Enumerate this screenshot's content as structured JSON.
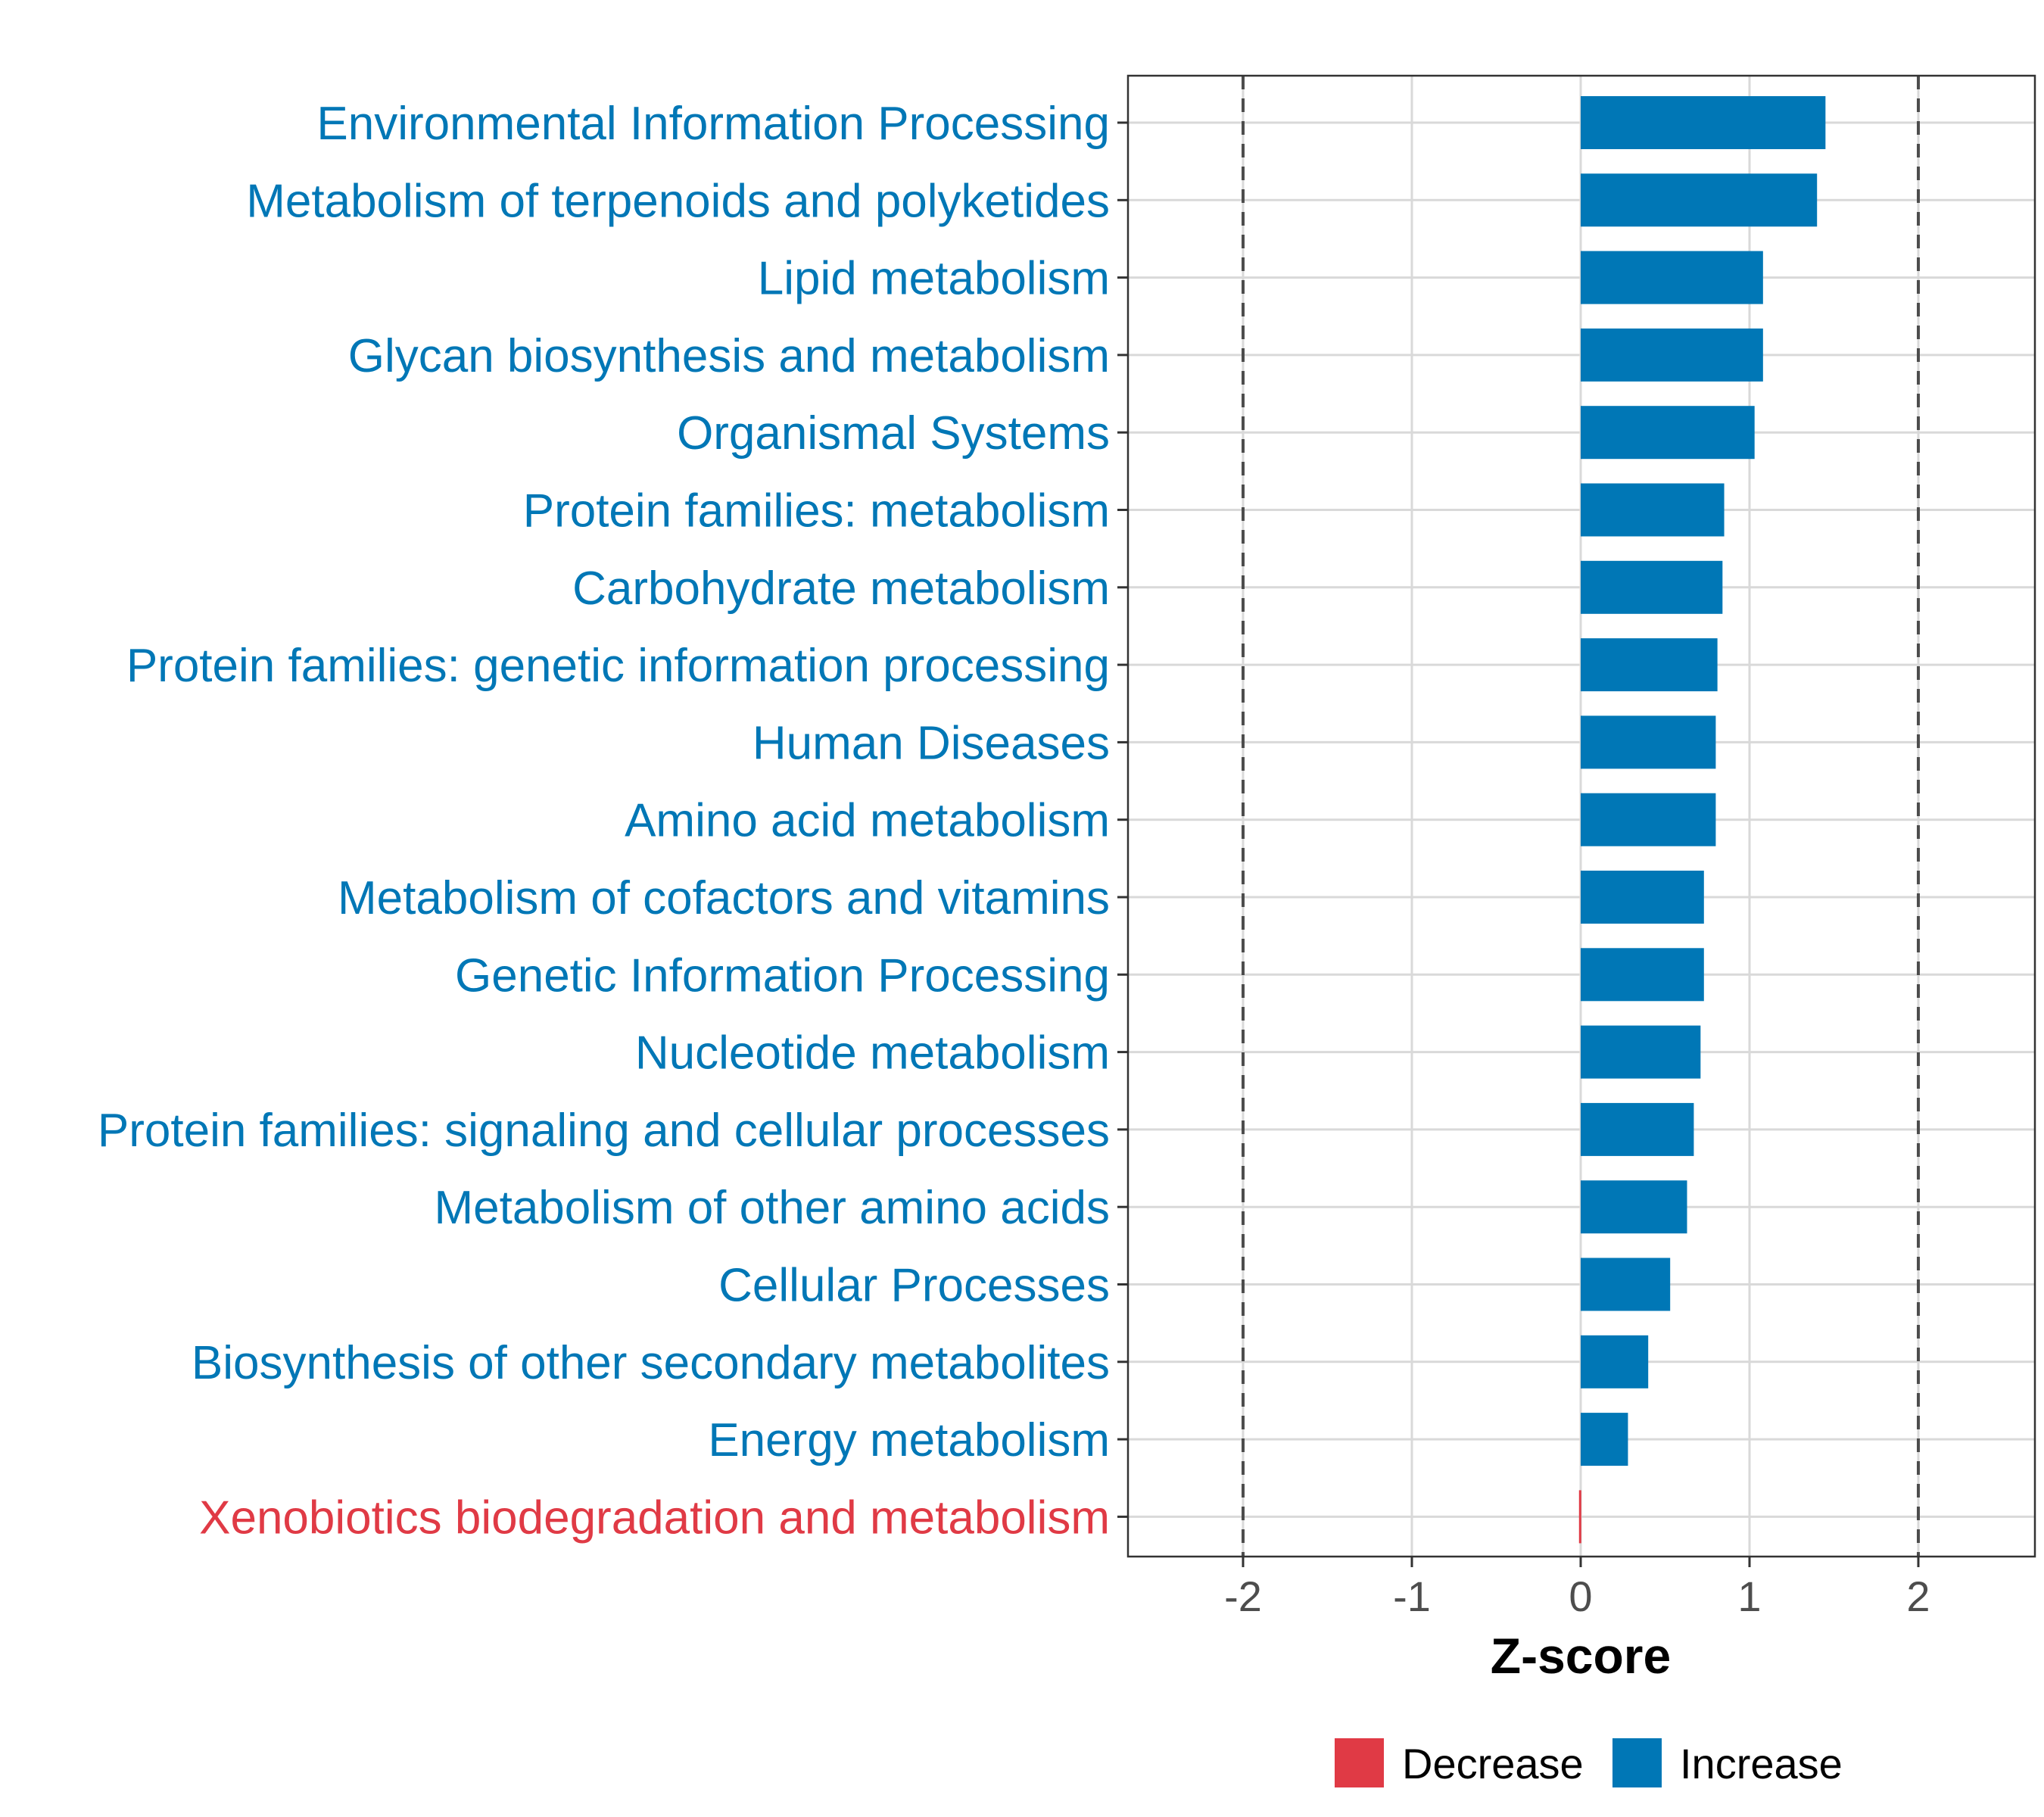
{
  "chart_data": {
    "type": "bar",
    "orientation": "horizontal",
    "categories": [
      "Environmental Information Processing",
      "Metabolism of terpenoids and polyketides",
      "Lipid metabolism",
      "Glycan biosynthesis and metabolism",
      "Organismal Systems",
      "Protein families: metabolism",
      "Carbohydrate metabolism",
      "Protein families: genetic information processing",
      "Human Diseases",
      "Amino acid metabolism",
      "Metabolism of cofactors and vitamins",
      "Genetic Information Processing",
      "Nucleotide metabolism",
      "Protein families: signaling and cellular processes",
      "Metabolism of other amino acids",
      "Cellular Processes",
      "Biosynthesis of other secondary metabolites",
      "Energy metabolism",
      "Xenobiotics biodegradation and metabolism"
    ],
    "values": [
      1.45,
      1.4,
      1.08,
      1.08,
      1.03,
      0.85,
      0.84,
      0.81,
      0.8,
      0.8,
      0.73,
      0.73,
      0.71,
      0.67,
      0.63,
      0.53,
      0.4,
      0.28,
      -0.01
    ],
    "groups": [
      "Increase",
      "Increase",
      "Increase",
      "Increase",
      "Increase",
      "Increase",
      "Increase",
      "Increase",
      "Increase",
      "Increase",
      "Increase",
      "Increase",
      "Increase",
      "Increase",
      "Increase",
      "Increase",
      "Increase",
      "Increase",
      "Decrease"
    ],
    "xlabel": "Z-score",
    "ylabel": "",
    "xlim": [
      -2.68,
      2.68
    ],
    "x_ticks": [
      "-2",
      "-1",
      "0",
      "1",
      "2"
    ],
    "reference_lines": [
      -2,
      2
    ],
    "grid": true,
    "legend": {
      "placement": "bottom",
      "entries": [
        {
          "label": "Decrease",
          "color": "#E03A45"
        },
        {
          "label": "Increase",
          "color": "#0077B6"
        }
      ]
    }
  }
}
